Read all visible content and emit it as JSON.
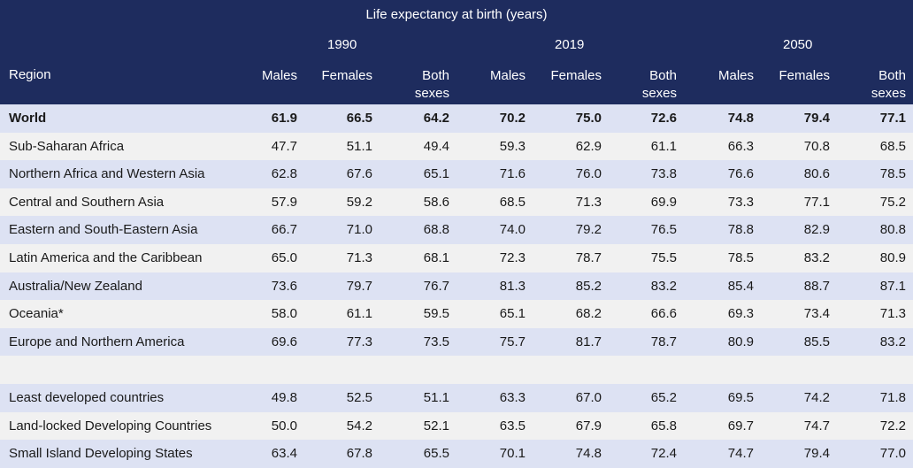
{
  "header": {
    "caption": "Life expectancy at birth (years)",
    "region_label": "Region",
    "years": [
      "1990",
      "2019",
      "2050"
    ],
    "col_males": "Males",
    "col_females": "Females",
    "col_both_1": "Both",
    "col_both_2": "sexes"
  },
  "rows": [
    {
      "name": "World",
      "bold": true,
      "v": [
        "61.9",
        "66.5",
        "64.2",
        "70.2",
        "75.0",
        "72.6",
        "74.8",
        "79.4",
        "77.1"
      ]
    },
    {
      "name": "Sub-Saharan Africa",
      "v": [
        "47.7",
        "51.1",
        "49.4",
        "59.3",
        "62.9",
        "61.1",
        "66.3",
        "70.8",
        "68.5"
      ]
    },
    {
      "name": "Northern Africa and Western Asia",
      "v": [
        "62.8",
        "67.6",
        "65.1",
        "71.6",
        "76.0",
        "73.8",
        "76.6",
        "80.6",
        "78.5"
      ]
    },
    {
      "name": "Central and Southern Asia",
      "v": [
        "57.9",
        "59.2",
        "58.6",
        "68.5",
        "71.3",
        "69.9",
        "73.3",
        "77.1",
        "75.2"
      ]
    },
    {
      "name": "Eastern and South-Eastern Asia",
      "v": [
        "66.7",
        "71.0",
        "68.8",
        "74.0",
        "79.2",
        "76.5",
        "78.8",
        "82.9",
        "80.8"
      ]
    },
    {
      "name": "Latin America and the Caribbean",
      "v": [
        "65.0",
        "71.3",
        "68.1",
        "72.3",
        "78.7",
        "75.5",
        "78.5",
        "83.2",
        "80.9"
      ]
    },
    {
      "name": "Australia/New Zealand",
      "v": [
        "73.6",
        "79.7",
        "76.7",
        "81.3",
        "85.2",
        "83.2",
        "85.4",
        "88.7",
        "87.1"
      ]
    },
    {
      "name": "Oceania*",
      "v": [
        "58.0",
        "61.1",
        "59.5",
        "65.1",
        "68.2",
        "66.6",
        "69.3",
        "73.4",
        "71.3"
      ]
    },
    {
      "name": "Europe and Northern America",
      "v": [
        "69.6",
        "77.3",
        "73.5",
        "75.7",
        "81.7",
        "78.7",
        "80.9",
        "85.5",
        "83.2"
      ]
    },
    {
      "name": "",
      "blank": true,
      "v": []
    },
    {
      "name": "Least developed countries",
      "v": [
        "49.8",
        "52.5",
        "51.1",
        "63.3",
        "67.0",
        "65.2",
        "69.5",
        "74.2",
        "71.8"
      ]
    },
    {
      "name": "Land-locked Developing Countries",
      "v": [
        "50.0",
        "54.2",
        "52.1",
        "63.5",
        "67.9",
        "65.8",
        "69.7",
        "74.7",
        "72.2"
      ]
    },
    {
      "name": "Small Island Developing States",
      "v": [
        "63.4",
        "67.8",
        "65.5",
        "70.1",
        "74.8",
        "72.4",
        "74.7",
        "79.4",
        "77.0"
      ]
    }
  ]
}
